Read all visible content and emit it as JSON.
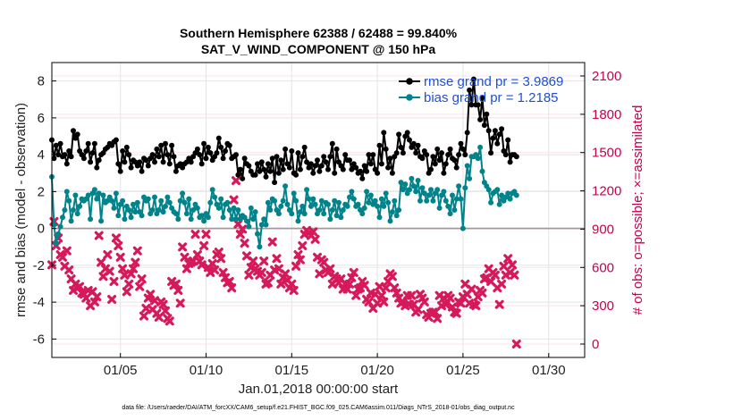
{
  "chart_data": {
    "type": "line",
    "title_line1": "Southern Hemisphere 62388 / 62488 = 99.840%",
    "title_line2": "SAT_V_WIND_COMPONENT @ 150 hPa",
    "ylabel_left": "rmse and bias (model - observation)",
    "ylabel_right": "# of obs: o=possible; ×=assimilated",
    "xlabel": "Jan.01,2018 00:00:00 start",
    "footnote": "data file: /Users/raeder/DAI/ATM_forcXX/CAM6_setup/f.e21.FHIST_BGC.f09_025.CAM6assim.011/Diags_NTrS_2018-01/obs_diag_output.nc",
    "ylim_left": [
      -7,
      9
    ],
    "ylim_right": [
      -105,
      2205
    ],
    "yticks_left": [
      -6,
      -4,
      -2,
      0,
      2,
      4,
      6,
      8
    ],
    "yticks_right": [
      0,
      300,
      600,
      900,
      1200,
      1500,
      1800,
      2100
    ],
    "xlim": [
      1.0,
      32.1
    ],
    "xticks": [
      {
        "value": 5,
        "label": "01/05"
      },
      {
        "value": 10,
        "label": "01/10"
      },
      {
        "value": 15,
        "label": "01/15"
      },
      {
        "value": 20,
        "label": "01/20"
      },
      {
        "value": 25,
        "label": "01/25"
      },
      {
        "value": 30,
        "label": "01/30"
      }
    ],
    "x_start": 1.0,
    "x_step": 0.125,
    "grid": true,
    "legend_position": "top-right",
    "series": [
      {
        "name": "rmse grand pr = 3.9869",
        "color": "#000000",
        "axis": "left",
        "marker": "o",
        "values": [
          4.8,
          3.8,
          4.5,
          4.0,
          4.6,
          3.9,
          4.0,
          3.5,
          4.2,
          3.9,
          5.3,
          4.9,
          5.1,
          4.2,
          4.0,
          3.8,
          4.2,
          4.6,
          3.6,
          4.1,
          4.6,
          3.3,
          3.7,
          4.0,
          4.1,
          4.3,
          4.4,
          4.6,
          4.5,
          4.7,
          4.8,
          3.5,
          3.1,
          4.2,
          3.6,
          4.4,
          4.0,
          3.3,
          3.7,
          3.6,
          3.4,
          3.6,
          3.1,
          3.8,
          3.7,
          3.4,
          3.8,
          4.0,
          3.6,
          4.3,
          3.9,
          4.5,
          3.6,
          4.6,
          4.0,
          3.5,
          4.5,
          3.9,
          3.1,
          3.4,
          3.5,
          3.3,
          3.5,
          3.6,
          3.8,
          3.6,
          3.9,
          4.1,
          4.3,
          4.0,
          3.5,
          4.6,
          3.8,
          4.4,
          4.1,
          3.7,
          3.9,
          4.1,
          4.9,
          4.4,
          3.8,
          4.2,
          4.6,
          4.5,
          3.8,
          3.9,
          4.0,
          2.9,
          3.2,
          2.7,
          3.8,
          3.5,
          3.4,
          3.1,
          2.9,
          2.9,
          3.5,
          3.1,
          3.6,
          3.2,
          2.8,
          3.5,
          3.1,
          3.8,
          2.5,
          3.9,
          3.0,
          3.7,
          3.2,
          4.3,
          3.5,
          3.3,
          4.2,
          3.0,
          2.9,
          4.1,
          3.2,
          3.9,
          4.4,
          3.6,
          3.3,
          3.5,
          3.0,
          3.4,
          3.7,
          3.1,
          3.4,
          3.9,
          3.6,
          3.2,
          3.9,
          4.6,
          3.0,
          4.3,
          3.6,
          3.4,
          3.2,
          4.0,
          3.7,
          3.7,
          3.2,
          3.5,
          3.3,
          3.0,
          3.1,
          2.7,
          3.4,
          3.1,
          4.0,
          3.5,
          4.0,
          3.2,
          3.0,
          4.5,
          3.5,
          5.2,
          4.3,
          3.3,
          3.8,
          3.0,
          3.9,
          4.1,
          5.1,
          4.4,
          4.1,
          5.0,
          5.2,
          4.8,
          4.4,
          4.6,
          4.1,
          4.5,
          3.9,
          3.8,
          4.2,
          4.0,
          3.0,
          3.2,
          3.9,
          3.5,
          4.3,
          3.7,
          4.1,
          3.0,
          3.5,
          4.0,
          4.3,
          3.8,
          3.7,
          3.3,
          4.0,
          4.6,
          4.3,
          4.0,
          5.2,
          7.5,
          6.7,
          8.1,
          6.7,
          6.7,
          5.9,
          7.1,
          5.6,
          6.2,
          5.3,
          4.1,
          4.9,
          5.3,
          4.6,
          5.1,
          5.4,
          4.2,
          4.0,
          4.8,
          3.6,
          4.0,
          4.0,
          3.9
        ]
      },
      {
        "name": "bias grand pr = 1.2185",
        "color": "#00838a",
        "axis": "left",
        "marker": "o",
        "values": [
          2.8,
          0.2,
          -0.8,
          -0.3,
          0.1,
          0.6,
          1.0,
          2.0,
          1.5,
          0.4,
          1.0,
          1.8,
          0.8,
          1.2,
          1.6,
          1.5,
          1.6,
          1.8,
          0.5,
          1.9,
          2.1,
          1.6,
          1.9,
          0.4,
          1.8,
          1.4,
          1.5,
          1.7,
          1.5,
          1.1,
          1.9,
          0.7,
          1.3,
          1.5,
          0.5,
          1.2,
          1.0,
          0.6,
          1.3,
          0.9,
          1.4,
          0.9,
          0.7,
          1.7,
          1.5,
          1.6,
          0.8,
          1.0,
          1.7,
          0.8,
          1.0,
          1.5,
          0.9,
          1.2,
          1.7,
          1.4,
          1.1,
          0.9,
          0.8,
          0.5,
          1.5,
          1.9,
          1.4,
          0.8,
          1.6,
          0.5,
          1.0,
          1.3,
          1.1,
          0.6,
          0.7,
          0.4,
          0.8,
          0.6,
          1.4,
          2.1,
          1.7,
          1.3,
          1.1,
          1.6,
          0.6,
          1.3,
          1.4,
          1.0,
          0.5,
          1.1,
          0.5,
          1.0,
          0.5,
          0.7,
          0.6,
          0.4,
          0.1,
          1.1,
          0.5,
          0.9,
          -0.3,
          -1.0,
          0.2,
          0.5,
          0.2,
          1.4,
          1.0,
          1.6,
          1.5,
          1.0,
          0.8,
          1.2,
          1.5,
          2.3,
          1.3,
          1.0,
          0.8,
          1.9,
          1.5,
          0.4,
          0.9,
          1.2,
          0.8,
          2.1,
          1.6,
          1.2,
          1.6,
          1.3,
          0.8,
          1.0,
          1.5,
          0.8,
          1.4,
          1.3,
          0.5,
          1.0,
          1.5,
          0.7,
          1.4,
          0.6,
          1.0,
          1.3,
          1.2,
          1.7,
          2.0,
          1.6,
          1.2,
          1.3,
          1.0,
          0.8,
          1.1,
          2.0,
          1.4,
          1.8,
          1.3,
          1.5,
          1.2,
          0.6,
          1.6,
          1.2,
          1.9,
          1.4,
          0.4,
          0.9,
          1.5,
          0.7,
          1.0,
          2.5,
          2.1,
          2.4,
          1.9,
          2.1,
          2.7,
          2.3,
          2.0,
          2.6,
          1.5,
          2.2,
          1.9,
          1.5,
          1.8,
          2.1,
          1.5,
          1.9,
          2.1,
          1.1,
          1.8,
          2.0,
          1.5,
          1.2,
          0.8,
          1.8,
          1.0,
          1.6,
          2.3,
          1.6,
          0.0,
          2.2,
          3.4,
          2.7,
          3.9,
          3.9,
          4.0,
          3.8,
          4.4,
          3.1,
          2.5,
          2.3,
          2.1,
          1.4,
          1.9,
          2.0,
          2.1,
          1.3,
          1.8,
          1.5,
          1.7,
          1.9,
          1.6,
          1.9,
          2.0,
          1.8
        ]
      }
    ],
    "obs_assimilated": {
      "color": "#d6195a",
      "axis": "right",
      "marker": "x",
      "values": [
        620,
        960,
        770,
        830,
        700,
        680,
        610,
        730,
        580,
        510,
        420,
        470,
        440,
        450,
        400,
        390,
        360,
        420,
        300,
        410,
        330,
        370,
        850,
        640,
        530,
        590,
        700,
        570,
        350,
        490,
        830,
        770,
        680,
        590,
        540,
        410,
        470,
        550,
        590,
        640,
        730,
        450,
        510,
        220,
        280,
        360,
        390,
        270,
        340,
        240,
        210,
        330,
        310,
        260,
        200,
        180,
        490,
        460,
        470,
        420,
        320,
        760,
        680,
        590,
        630,
        640,
        650,
        860,
        700,
        650,
        620,
        770,
        860,
        600,
        560,
        630,
        580,
        700,
        720,
        670,
        560,
        520,
        480,
        490,
        440,
        1130,
        1280,
        940,
        860,
        900,
        790,
        690,
        540,
        600,
        650,
        590,
        570,
        540,
        560,
        650,
        470,
        480,
        540,
        800,
        580,
        670,
        590,
        470,
        520,
        550,
        500,
        440,
        470,
        420,
        610,
        700,
        660,
        770,
        860,
        890,
        870,
        850,
        880,
        820,
        680,
        550,
        660,
        640,
        580,
        560,
        590,
        470,
        530,
        510,
        480,
        510,
        430,
        470,
        430,
        470,
        520,
        560,
        380,
        430,
        440,
        490,
        460,
        350,
        330,
        400,
        280,
        390,
        320,
        450,
        380,
        330,
        440,
        490,
        550,
        530,
        440,
        400,
        360,
        320,
        330,
        300,
        380,
        310,
        380,
        310,
        250,
        270,
        390,
        360,
        330,
        230,
        210,
        240,
        250,
        250,
        200,
        380,
        300,
        360,
        310,
        380,
        360,
        290,
        250,
        240,
        330,
        320,
        370,
        470,
        390,
        320,
        430,
        310,
        300,
        370,
        420,
        400,
        510,
        520,
        590,
        490,
        560,
        540,
        440,
        310,
        470,
        610,
        540,
        670,
        560,
        620,
        540,
        0
      ]
    }
  }
}
